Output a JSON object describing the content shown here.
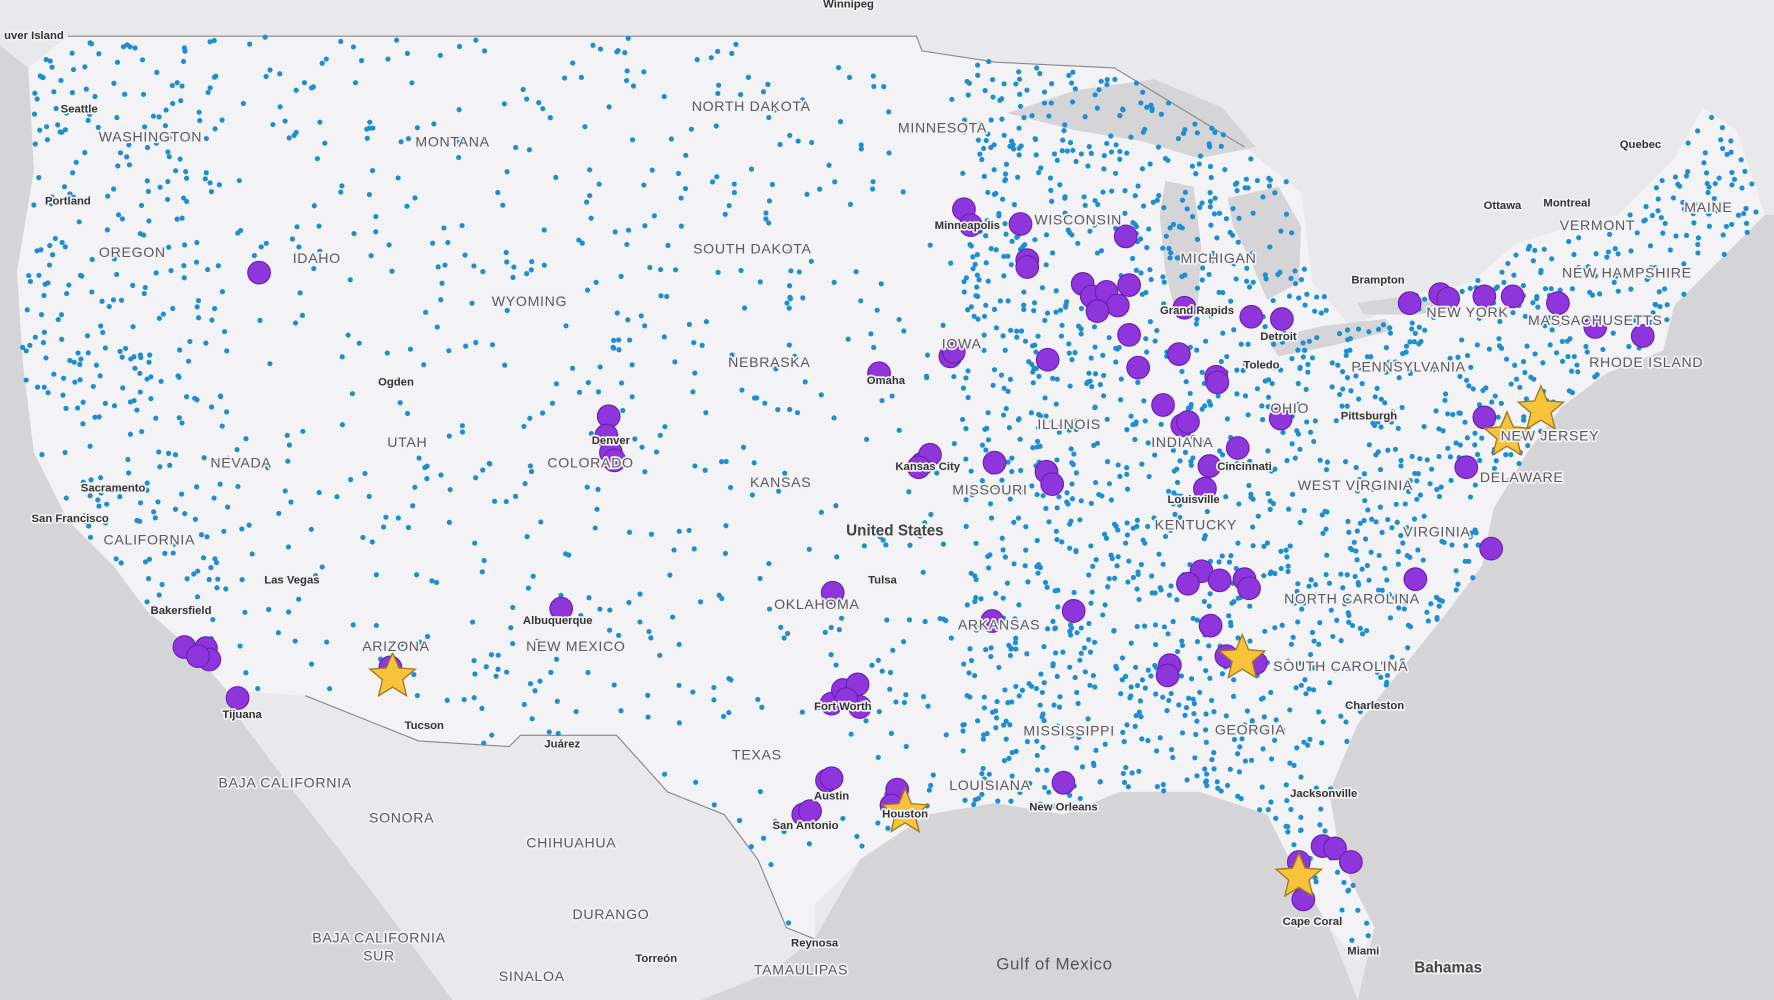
{
  "labels": [
    "Winnipeg",
    "uver Island",
    "Seattle",
    "WASHINGTON",
    "MONTANA",
    "NORTH DAKOTA",
    "MINNESOTA",
    "Portland",
    "OREGON",
    "IDAHO",
    "SOUTH DAKOTA",
    "WISCONSIN",
    "Minneapolis",
    "MICHIGAN",
    "WYOMING",
    "Grand Rapids",
    "Detroit",
    "NEBRASKA",
    "IOWA",
    "Omaha",
    "Ogden",
    "Toledo",
    "NEVADA",
    "UTAH",
    "Denver",
    "COLORADO",
    "ILLINOIS",
    "INDIANA",
    "OHIO",
    "KANSAS",
    "Kansas City",
    "MISSOURI",
    "Cincinnati",
    "Louisville",
    "KENTUCKY",
    "United States",
    "San Francisco",
    "Sacramento",
    "CALIFORNIA",
    "Las Vegas",
    "Tulsa",
    "OKLAHOMA",
    "Bakersfield",
    "Albuquerque",
    "ARKANSAS",
    "NEW MEXICO",
    "ARIZONA",
    "Tijuana",
    "Tucson",
    "Juárez",
    "Fort Worth",
    "TEXAS",
    "MISSISSIPPI",
    "LOUISIANA",
    "New Orleans",
    "Austin",
    "Houston",
    "San Antonio",
    "BAJA CALIFORNIA",
    "SONORA",
    "CHIHUAHUA",
    "DURANGO",
    "BAJA CALIFORNIA",
    "SUR",
    "SINALOA",
    "Torreón",
    "Reynosa",
    "TAMAULIPAS",
    "Gulf of Mexico",
    "Bahamas",
    "Miami",
    "Cape Coral",
    "Jacksonville",
    "Charleston",
    "GEORGIA",
    "SOUTH CAROLINA",
    "NORTH CAROLINA",
    "VIRGINIA",
    "WEST VIRGINIA",
    "DELAWARE",
    "NEW JERSEY",
    "PENNSYLVANIA",
    "Pittsburgh",
    "NEW YORK",
    "Brampton",
    "Ottawa",
    "Montreal",
    "Quebec",
    "VERMONT",
    "MAINE",
    "NEW HAMPSHIRE",
    "MASSACHUSETTS",
    "RHODE ISLAND"
  ]
}
